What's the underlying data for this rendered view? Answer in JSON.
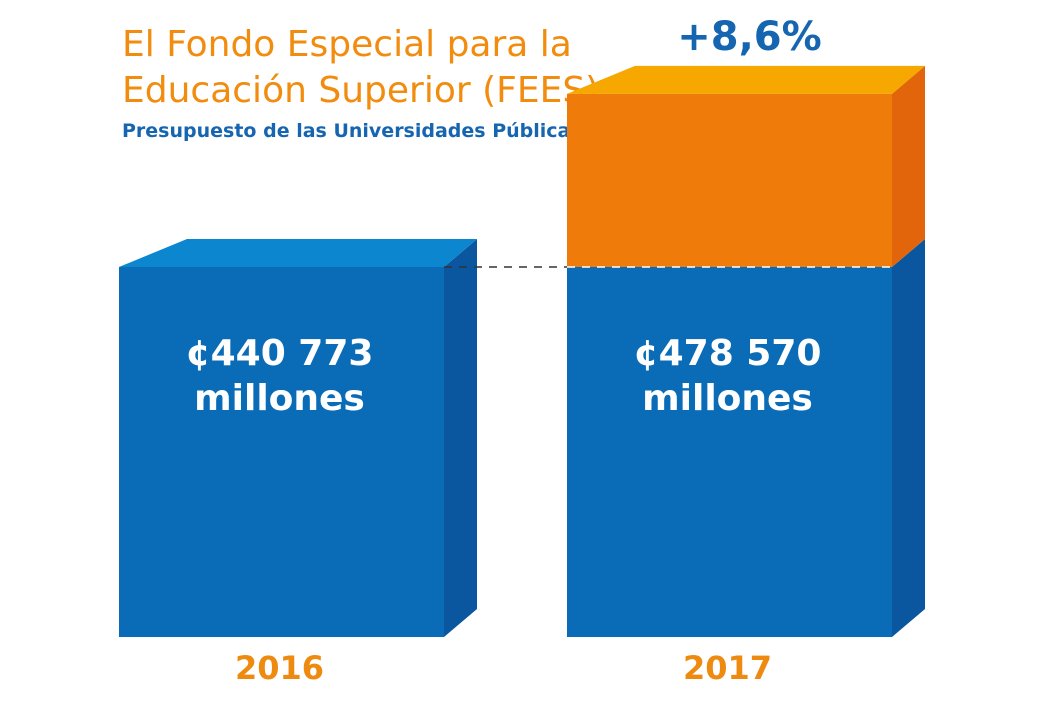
{
  "title": "El Fondo Especial para la Educación Superior (FEES)",
  "subtitle": "Presupuesto de las Universidades Públicas",
  "chart_data": {
    "type": "bar",
    "title": "El Fondo Especial para la Educación Superior (FEES)",
    "subtitle": "Presupuesto de las Universidades Públicas",
    "categories": [
      "2016",
      "2017"
    ],
    "values": [
      440773,
      478570
    ],
    "value_labels": [
      {
        "amount": "¢440 773",
        "unit": "millones"
      },
      {
        "amount": "¢478 570",
        "unit": "millones"
      }
    ],
    "annotation": "+8,6%",
    "xlabel": "",
    "ylabel": "",
    "ylim": [
      0,
      478570
    ],
    "grid": false,
    "colors": {
      "front": "#0a6cb7",
      "top": "#0b86cf",
      "side": "#0a57a0",
      "increase_front": "#ef7c0a",
      "increase_top": "#f6a800",
      "increase_side": "#e2650c",
      "title": "#f28c0f",
      "subtitle": "#1565b0",
      "years": "#ef8a10"
    }
  }
}
